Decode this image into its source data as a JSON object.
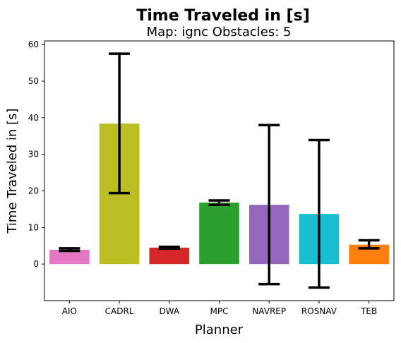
{
  "chart_data": {
    "type": "bar",
    "title": "Time Traveled in [s]",
    "subtitle": "Map: ignc Obstacles: 5",
    "xlabel": "Planner",
    "ylabel": "Time Traveled in [s]",
    "ylim": [
      -10,
      61
    ],
    "yticks": [
      "0",
      "10",
      "20",
      "30",
      "40",
      "50",
      "60"
    ],
    "grid": false,
    "categories": [
      "AIO",
      "CADRL",
      "DWA",
      "MPC",
      "NAVREP",
      "ROSNAV",
      "TEB"
    ],
    "values": [
      3.9,
      38.4,
      4.5,
      16.8,
      16.2,
      13.7,
      5.3
    ],
    "error_low": [
      3.6,
      19.4,
      4.2,
      16.2,
      -5.5,
      -6.4,
      4.3
    ],
    "error_high": [
      4.3,
      57.5,
      4.7,
      17.4,
      38.0,
      33.9,
      6.5
    ],
    "colors": [
      "#e377c2",
      "#bcbd22",
      "#d62728",
      "#2ca02c",
      "#9467bd",
      "#17becf",
      "#ff7f0e"
    ]
  }
}
